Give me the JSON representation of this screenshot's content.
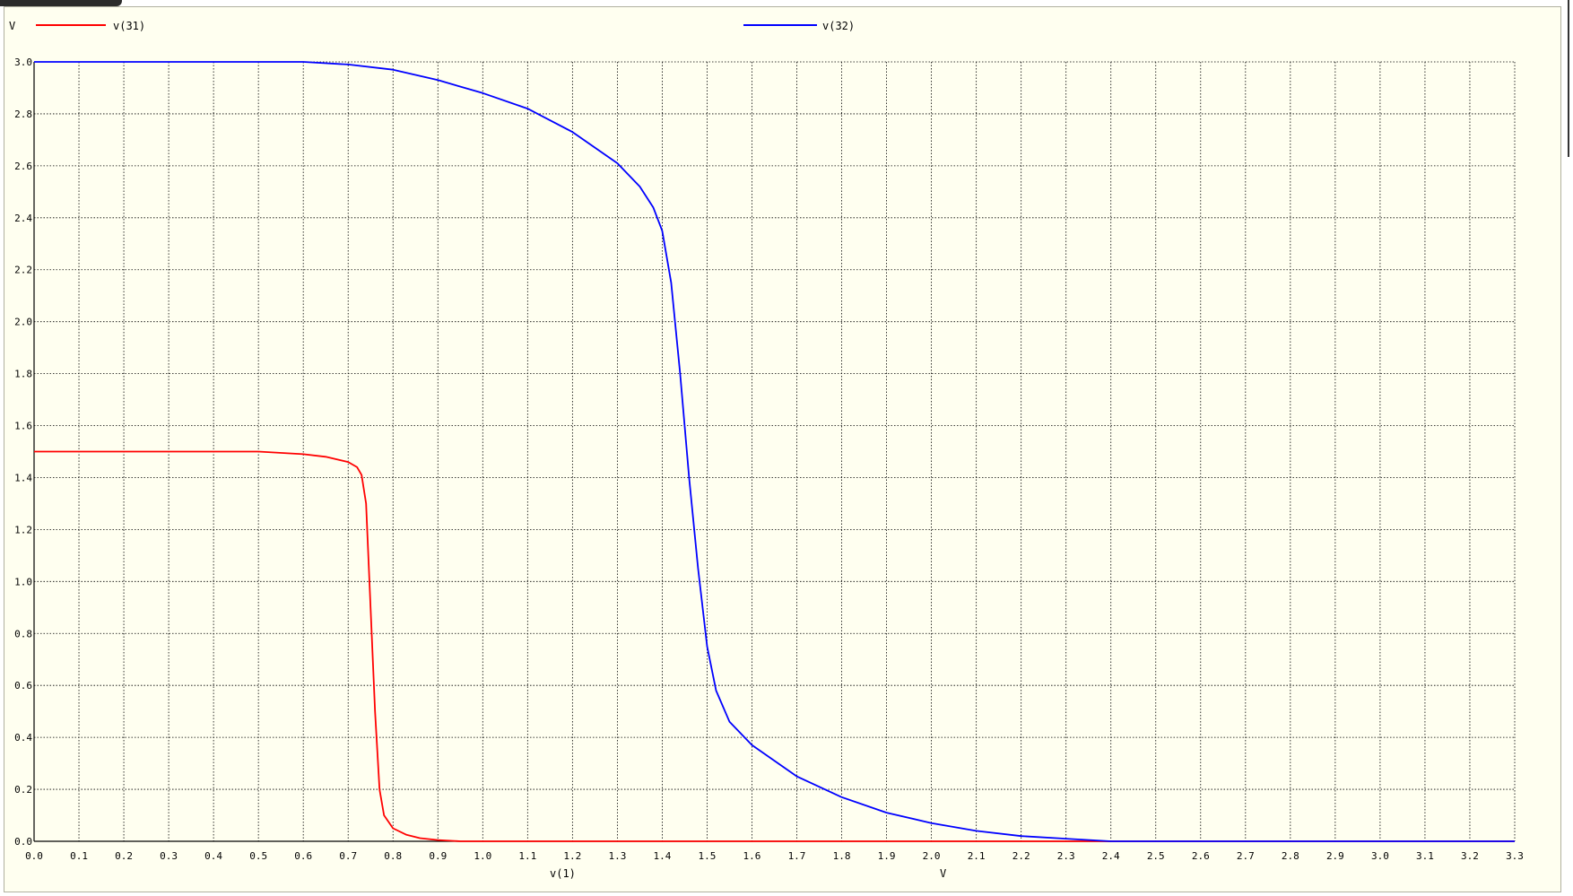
{
  "chart_data": {
    "type": "line",
    "y_unit_label": "V",
    "xlabel": "v(1)",
    "x_unit_label": "V",
    "xlim": [
      0.0,
      3.3
    ],
    "ylim": [
      0.0,
      3.0
    ],
    "x_ticks": [
      "0.0",
      "0.1",
      "0.2",
      "0.3",
      "0.4",
      "0.5",
      "0.6",
      "0.7",
      "0.8",
      "0.9",
      "1.0",
      "1.1",
      "1.2",
      "1.3",
      "1.4",
      "1.5",
      "1.6",
      "1.7",
      "1.8",
      "1.9",
      "2.0",
      "2.1",
      "2.2",
      "2.3",
      "2.4",
      "2.5",
      "2.6",
      "2.7",
      "2.8",
      "2.9",
      "3.0",
      "3.1",
      "3.2",
      "3.3"
    ],
    "y_ticks": [
      "0.0",
      "0.2",
      "0.4",
      "0.6",
      "0.8",
      "1.0",
      "1.2",
      "1.4",
      "1.6",
      "1.8",
      "2.0",
      "2.2",
      "2.4",
      "2.6",
      "2.8",
      "3.0"
    ],
    "grid": true,
    "legend_position": "top",
    "series": [
      {
        "name": "v(31)",
        "color": "#ff0000",
        "x": [
          0.0,
          0.5,
          0.6,
          0.65,
          0.7,
          0.72,
          0.73,
          0.74,
          0.75,
          0.76,
          0.77,
          0.78,
          0.8,
          0.83,
          0.86,
          0.9,
          0.95,
          1.0,
          3.3
        ],
        "y": [
          1.5,
          1.5,
          1.49,
          1.48,
          1.46,
          1.44,
          1.41,
          1.3,
          0.9,
          0.5,
          0.2,
          0.1,
          0.05,
          0.025,
          0.012,
          0.005,
          0.0,
          0.0,
          0.0
        ]
      },
      {
        "name": "v(32)",
        "color": "#0000ff",
        "x": [
          0.0,
          0.5,
          0.6,
          0.7,
          0.8,
          0.9,
          1.0,
          1.1,
          1.2,
          1.3,
          1.35,
          1.38,
          1.4,
          1.42,
          1.44,
          1.46,
          1.48,
          1.5,
          1.52,
          1.55,
          1.6,
          1.7,
          1.8,
          1.9,
          2.0,
          2.1,
          2.2,
          2.3,
          2.4,
          3.3
        ],
        "y": [
          3.0,
          3.0,
          3.0,
          2.99,
          2.97,
          2.93,
          2.88,
          2.82,
          2.73,
          2.61,
          2.52,
          2.44,
          2.35,
          2.15,
          1.8,
          1.4,
          1.05,
          0.75,
          0.58,
          0.46,
          0.37,
          0.25,
          0.17,
          0.11,
          0.07,
          0.04,
          0.02,
          0.01,
          0.0,
          0.0
        ]
      }
    ]
  }
}
